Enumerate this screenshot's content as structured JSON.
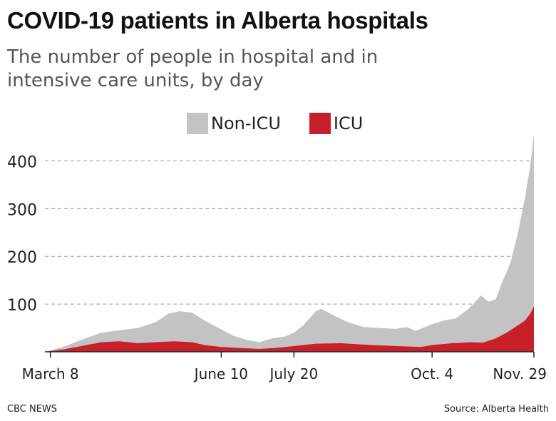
{
  "title": "COVID-19 patients in Alberta hospitals",
  "subtitle": "The number of people in hospital and in intensive care units, by day",
  "footer": {
    "credit": "CBC NEWS",
    "source": "Source: Alberta Health"
  },
  "colors": {
    "non_icu": "#c3c3c3",
    "icu": "#c8202a",
    "grid": "#999999",
    "axis": "#222222"
  },
  "chart_data": {
    "type": "area",
    "stacked": false,
    "legend_position": "top-center",
    "grid": "horizontal-dashed",
    "ylim": [
      0,
      450
    ],
    "yticks": [
      100,
      200,
      300,
      400
    ],
    "xlim": [
      "2020-03-05",
      "2020-11-29"
    ],
    "xticks": [
      {
        "date": "2020-03-08",
        "label": "March 8"
      },
      {
        "date": "2020-06-10",
        "label": "June 10"
      },
      {
        "date": "2020-07-20",
        "label": "July 20"
      },
      {
        "date": "2020-10-04",
        "label": "Oct. 4"
      },
      {
        "date": "2020-11-29",
        "label": "Nov. 29"
      }
    ],
    "series": [
      {
        "name": "Non-ICU",
        "color": "#c3c3c3",
        "points": [
          [
            "2020-03-05",
            0
          ],
          [
            "2020-03-15",
            10
          ],
          [
            "2020-03-25",
            25
          ],
          [
            "2020-04-05",
            40
          ],
          [
            "2020-04-15",
            45
          ],
          [
            "2020-04-25",
            50
          ],
          [
            "2020-05-05",
            62
          ],
          [
            "2020-05-12",
            80
          ],
          [
            "2020-05-18",
            85
          ],
          [
            "2020-05-25",
            82
          ],
          [
            "2020-06-01",
            65
          ],
          [
            "2020-06-10",
            47
          ],
          [
            "2020-06-17",
            33
          ],
          [
            "2020-06-24",
            25
          ],
          [
            "2020-07-01",
            20
          ],
          [
            "2020-07-08",
            28
          ],
          [
            "2020-07-15",
            32
          ],
          [
            "2020-07-20",
            40
          ],
          [
            "2020-07-25",
            55
          ],
          [
            "2020-08-01",
            85
          ],
          [
            "2020-08-04",
            90
          ],
          [
            "2020-08-10",
            78
          ],
          [
            "2020-08-18",
            63
          ],
          [
            "2020-08-27",
            52
          ],
          [
            "2020-09-05",
            50
          ],
          [
            "2020-09-14",
            48
          ],
          [
            "2020-09-20",
            52
          ],
          [
            "2020-09-25",
            44
          ],
          [
            "2020-10-04",
            58
          ],
          [
            "2020-10-10",
            65
          ],
          [
            "2020-10-17",
            70
          ],
          [
            "2020-10-24",
            90
          ],
          [
            "2020-10-31",
            118
          ],
          [
            "2020-11-04",
            105
          ],
          [
            "2020-11-08",
            110
          ],
          [
            "2020-11-12",
            150
          ],
          [
            "2020-11-16",
            185
          ],
          [
            "2020-11-20",
            245
          ],
          [
            "2020-11-24",
            320
          ],
          [
            "2020-11-27",
            390
          ],
          [
            "2020-11-29",
            455
          ]
        ]
      },
      {
        "name": "ICU",
        "color": "#c8202a",
        "points": [
          [
            "2020-03-05",
            0
          ],
          [
            "2020-03-15",
            5
          ],
          [
            "2020-03-25",
            12
          ],
          [
            "2020-04-05",
            20
          ],
          [
            "2020-04-15",
            22
          ],
          [
            "2020-04-25",
            18
          ],
          [
            "2020-05-05",
            20
          ],
          [
            "2020-05-15",
            22
          ],
          [
            "2020-05-25",
            20
          ],
          [
            "2020-06-01",
            14
          ],
          [
            "2020-06-10",
            10
          ],
          [
            "2020-06-20",
            8
          ],
          [
            "2020-07-01",
            6
          ],
          [
            "2020-07-10",
            8
          ],
          [
            "2020-07-20",
            12
          ],
          [
            "2020-08-01",
            17
          ],
          [
            "2020-08-15",
            18
          ],
          [
            "2020-09-01",
            14
          ],
          [
            "2020-09-15",
            12
          ],
          [
            "2020-09-28",
            10
          ],
          [
            "2020-10-04",
            14
          ],
          [
            "2020-10-15",
            18
          ],
          [
            "2020-10-25",
            20
          ],
          [
            "2020-11-01",
            19
          ],
          [
            "2020-11-08",
            28
          ],
          [
            "2020-11-14",
            40
          ],
          [
            "2020-11-20",
            55
          ],
          [
            "2020-11-24",
            65
          ],
          [
            "2020-11-27",
            80
          ],
          [
            "2020-11-29",
            95
          ]
        ]
      }
    ]
  }
}
